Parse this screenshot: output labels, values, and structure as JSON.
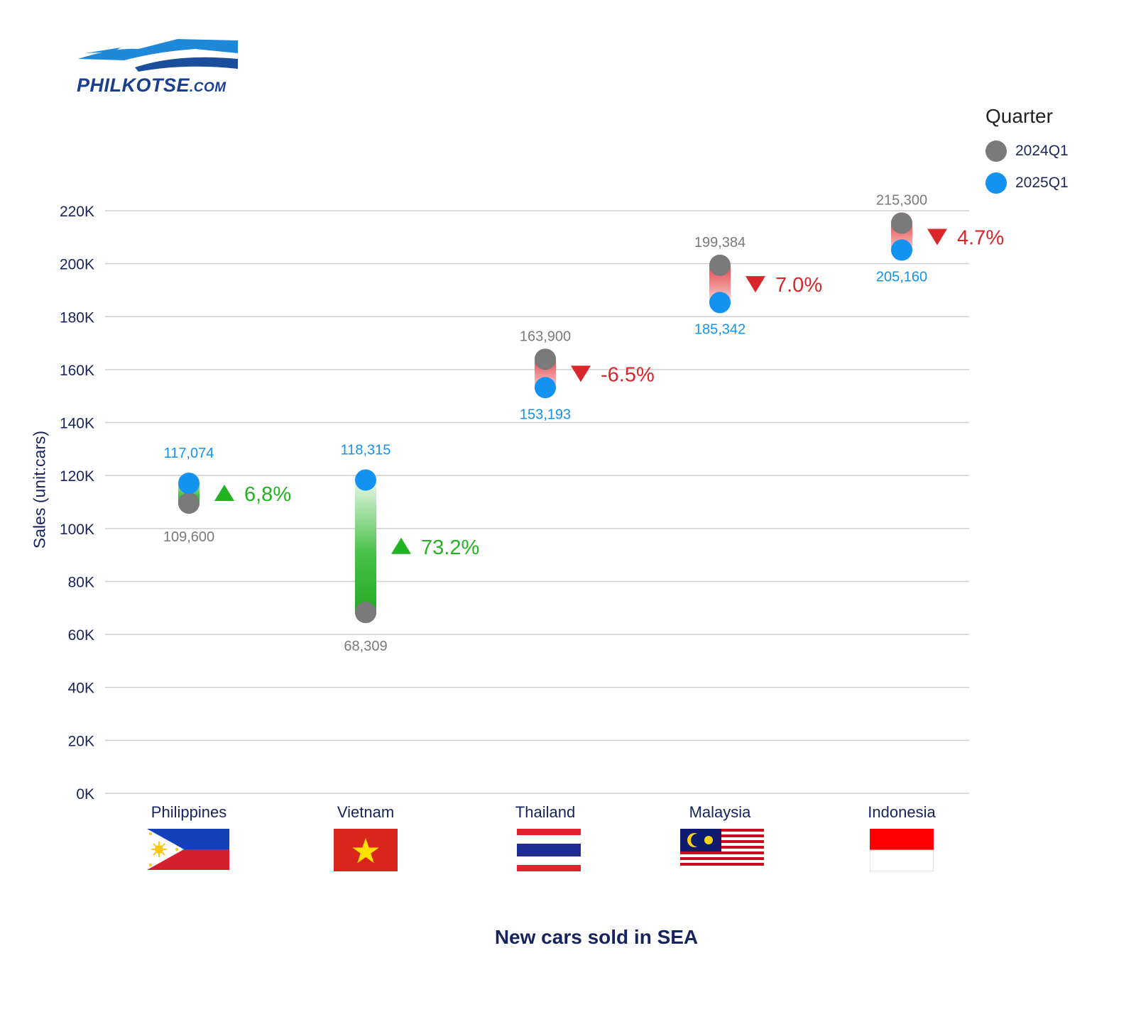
{
  "logo": {
    "name": "PHILKOTSE",
    "suffix": ".COM"
  },
  "legend": {
    "title": "Quarter",
    "items": [
      {
        "label": "2024Q1",
        "color": "#7a7a7a"
      },
      {
        "label": "2025Q1",
        "color": "#1492f0"
      }
    ]
  },
  "chart_data": {
    "type": "dumbbell",
    "title": "New cars sold in SEA",
    "xlabel": "",
    "ylabel": "Sales (unit:cars)",
    "ylim": [
      0,
      220000
    ],
    "yticks": [
      "0K",
      "20K",
      "40K",
      "60K",
      "80K",
      "100K",
      "120K",
      "140K",
      "160K",
      "180K",
      "200K",
      "220K"
    ],
    "grid": true,
    "legend_position": "top-right",
    "series": [
      {
        "name": "2024Q1",
        "color": "#7a7a7a"
      },
      {
        "name": "2025Q1",
        "color": "#1492f0"
      }
    ],
    "categories": [
      {
        "country": "Philippines",
        "flag": "philippines-flag",
        "q2024": 109600,
        "q2024_label": "109,600",
        "q2025": 117074,
        "q2025_label": "117,074",
        "change": "6,8%",
        "direction": "up"
      },
      {
        "country": "Vietnam",
        "flag": "vietnam-flag",
        "q2024": 68309,
        "q2024_label": "68,309",
        "q2025": 118315,
        "q2025_label": "118,315",
        "change": "73.2%",
        "direction": "up"
      },
      {
        "country": "Thailand",
        "flag": "thailand-flag",
        "q2024": 163900,
        "q2024_label": "163,900",
        "q2025": 153193,
        "q2025_label": "153,193",
        "change": "-6.5%",
        "direction": "down"
      },
      {
        "country": "Malaysia",
        "flag": "malaysia-flag",
        "q2024": 199384,
        "q2024_label": "199,384",
        "q2025": 185342,
        "q2025_label": "185,342",
        "change": "7.0%",
        "direction": "down"
      },
      {
        "country": "Indonesia",
        "flag": "indonesia-flag",
        "q2024": 215300,
        "q2024_label": "215,300",
        "q2025": 205160,
        "q2025_label": "205,160",
        "change": "4.7%",
        "direction": "down"
      }
    ],
    "colors": {
      "up": "#22b322",
      "down": "#d9262b",
      "axis_text": "#16235c",
      "grid": "#cfcfcf"
    }
  }
}
